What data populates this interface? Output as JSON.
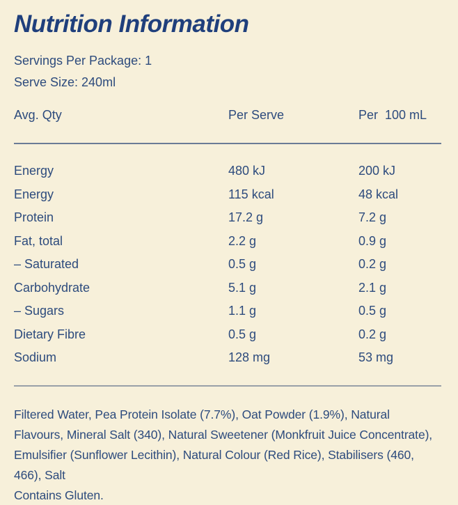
{
  "panel": {
    "title": "Nutrition Information",
    "servings_line": "Servings Per Package: 1",
    "serve_size_line": "Serve Size: 240ml"
  },
  "table": {
    "headers": [
      "Avg. Qty",
      "Per Serve",
      "Per  100 mL"
    ],
    "rows": [
      {
        "label": "Energy",
        "per_serve": "480 kJ",
        "per_100ml": "200 kJ"
      },
      {
        "label": "Energy",
        "per_serve": "115 kcal",
        "per_100ml": "48 kcal"
      },
      {
        "label": "Protein",
        "per_serve": "17.2 g",
        "per_100ml": "7.2 g"
      },
      {
        "label": "Fat, total",
        "per_serve": "2.2 g",
        "per_100ml": "0.9 g"
      },
      {
        "label": "– Saturated",
        "per_serve": "0.5 g",
        "per_100ml": "0.2 g"
      },
      {
        "label": "Carbohydrate",
        "per_serve": "5.1 g",
        "per_100ml": "2.1 g"
      },
      {
        "label": "– Sugars",
        "per_serve": "1.1 g",
        "per_100ml": "0.5 g"
      },
      {
        "label": "Dietary Fibre",
        "per_serve": "0.5 g",
        "per_100ml": "0.2 g"
      },
      {
        "label": "Sodium",
        "per_serve": "128 mg",
        "per_100ml": "53 mg"
      }
    ]
  },
  "footer": {
    "ingredients": "Filtered Water, Pea Protein Isolate (7.7%), Oat Powder (1.9%), Natural Flavours, Mineral Salt (340), Natural Sweetener (Monkfruit Juice Concentrate), Emulsifier (Sunflower Lecithin), Natural Colour (Red Rice), Stabilisers (460, 466), Salt",
    "allergen": "Contains Gluten."
  },
  "colors": {
    "background": "#f7f0da",
    "body_text": "#2d4b7d",
    "title_text": "#1f3f7c",
    "divider_top": "#6b7b96",
    "divider_bottom": "#98a0a8"
  }
}
